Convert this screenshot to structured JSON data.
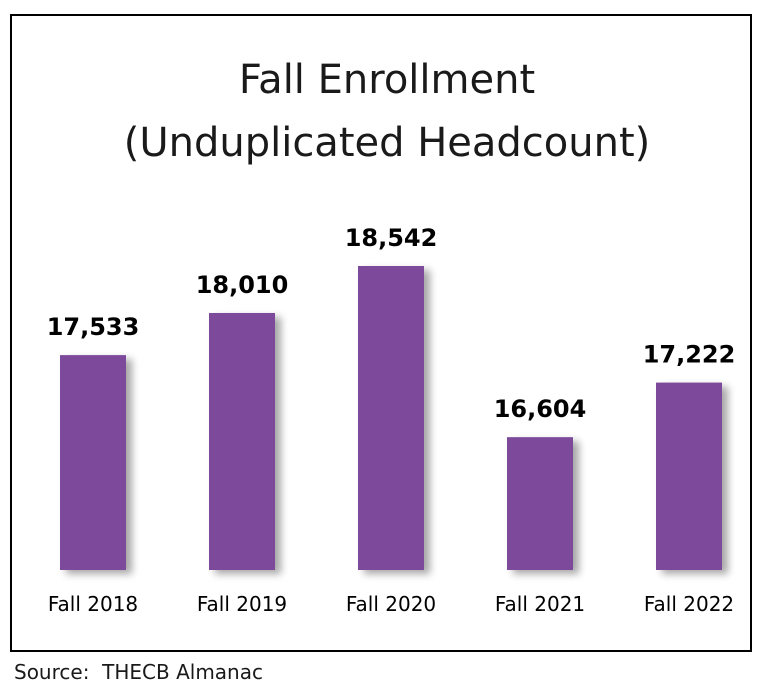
{
  "chart_data": {
    "type": "bar",
    "title_line1": "Fall Enrollment",
    "title_line2": "(Unduplicated Headcount)",
    "categories": [
      "Fall 2018",
      "Fall 2019",
      "Fall 2020",
      "Fall 2021",
      "Fall 2022"
    ],
    "values": [
      17533,
      18010,
      18542,
      16604,
      17222
    ],
    "value_labels": [
      "17,533",
      "18,010",
      "18,542",
      "16,604",
      "17,222"
    ],
    "bar_color": "#7b4a9b",
    "grid": false,
    "legend": "none"
  },
  "source": "Source:  THECB Almanac"
}
